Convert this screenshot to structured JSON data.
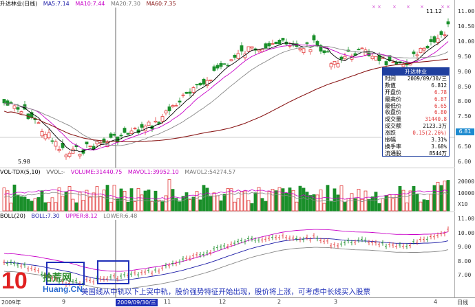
{
  "main_pane": {
    "title": "升达林业(日线)",
    "ma5": "MA5:7.14",
    "ma10": "MA10:7.44",
    "ma20": "MA20:7.30",
    "ma60": "MA60:7.35",
    "y_ticks": [
      "11.00",
      "10.50",
      "10.00",
      "9.50",
      "9.00",
      "8.50",
      "8.00",
      "7.50",
      "7.00",
      "6.50",
      "6.00"
    ],
    "high_label": "11.12",
    "low_label": "5.98",
    "current_price": "6.81"
  },
  "vol_pane": {
    "title": "VOL-TDX(5,10)",
    "vvol": "VVOL:-",
    "volume": "VOLUME:31440.75",
    "mavol1": "MAVOL1:39952.10",
    "mavol2": "MAVOL2:54274.57",
    "y_ticks": [
      "20000",
      "10000",
      "X10"
    ]
  },
  "boll_pane": {
    "title": "BOLL(20)",
    "boll": "BOLL:7.30",
    "upper": "UPPER:8.12",
    "lower": "LOWER:6.48",
    "y_ticks": [
      "11.00",
      "10.00",
      "9.00",
      "8.00",
      "7.00"
    ]
  },
  "info_box": {
    "title": "升达林业",
    "rows": [
      {
        "label": "时间",
        "value": "2009/09/30/三"
      },
      {
        "label": "数值",
        "value": "6.812"
      },
      {
        "label": "开盘价",
        "value": "6.78"
      },
      {
        "label": "最高价",
        "value": "6.87"
      },
      {
        "label": "最低价",
        "value": "6.65"
      },
      {
        "label": "收盘价",
        "value": "6.80"
      },
      {
        "label": "成交量",
        "value": "31440.8"
      },
      {
        "label": "成交额",
        "value": "2123.3万"
      },
      {
        "label": "涨跌",
        "value": "0.15(2.26%)"
      },
      {
        "label": "振幅",
        "value": "3.31%"
      },
      {
        "label": "换手率",
        "value": "3.68%"
      },
      {
        "label": "流通股",
        "value": "8544万"
      }
    ]
  },
  "date_axis": {
    "labels": [
      "2009年",
      "9",
      "10",
      "11",
      "12",
      "2",
      "3",
      "4"
    ],
    "selected_date": "2009/09/30/三",
    "axis_unit": "日线"
  },
  "logo": {
    "number": "10",
    "name": "拾荒网",
    "domain": "Huang.CN"
  },
  "annotation": "美国线从中轨以下上突中轨，股价强势特征开始出现，股价将上涨，可考虑中长线买入股票",
  "colors": {
    "up": "#e23b3b",
    "down": "#1a8f2a",
    "ma5": "#000000",
    "ma10": "#c800c8",
    "ma20": "#888888",
    "ma60": "#8b1a1a",
    "highlight_box": "#1e2fb8",
    "logo_red": "#e02020"
  }
}
